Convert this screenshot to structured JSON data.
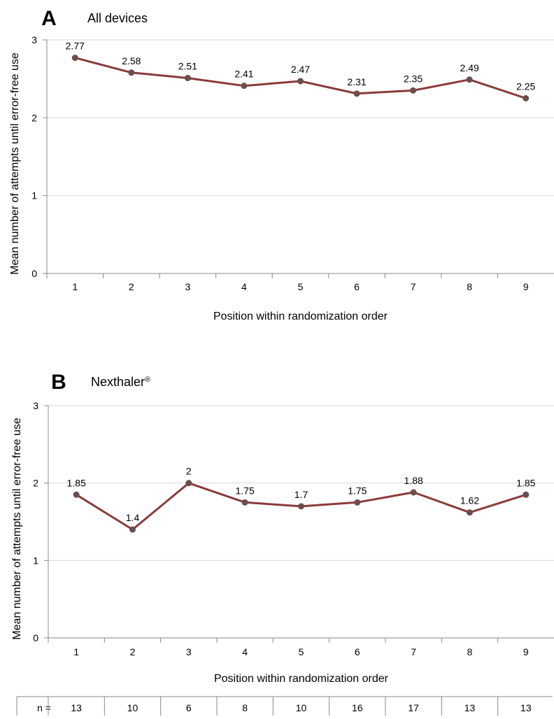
{
  "chart_data": [
    {
      "type": "line",
      "panel_letter": "A",
      "title": "All devices",
      "title_superscript": "",
      "xlabel": "Position within randomization order",
      "ylabel": "Mean number of attempts until error-free use",
      "categories": [
        "1",
        "2",
        "3",
        "4",
        "5",
        "6",
        "7",
        "8",
        "9"
      ],
      "values": [
        2.77,
        2.58,
        2.51,
        2.41,
        2.47,
        2.31,
        2.35,
        2.49,
        2.25
      ],
      "data_labels": [
        "2.77",
        "2.58",
        "2.51",
        "2.41",
        "2.47",
        "2.31",
        "2.35",
        "2.49",
        "2.25"
      ],
      "ylim": [
        0,
        3
      ],
      "yticks": [
        "0",
        "1",
        "2",
        "3"
      ],
      "grid": true,
      "line_color": "#8b3a3a",
      "marker_color": "#6b4e4e"
    },
    {
      "type": "line",
      "panel_letter": "B",
      "title": "Nexthaler",
      "title_superscript": "®",
      "xlabel": "Position within randomization order",
      "ylabel": "Mean number of attempts until error-free use",
      "categories": [
        "1",
        "2",
        "3",
        "4",
        "5",
        "6",
        "7",
        "8",
        "9"
      ],
      "values": [
        1.85,
        1.4,
        2,
        1.75,
        1.7,
        1.75,
        1.88,
        1.62,
        1.85
      ],
      "data_labels": [
        "1.85",
        "1.4",
        "2",
        "1.75",
        "1.7",
        "1.75",
        "1.88",
        "1.62",
        "1.85"
      ],
      "ylim": [
        0,
        3
      ],
      "yticks": [
        "0",
        "1",
        "2",
        "3"
      ],
      "grid": true,
      "line_color": "#8b3a3a",
      "marker_color": "#6b4e4e"
    }
  ],
  "n_row": {
    "label": "n =",
    "values": [
      "13",
      "10",
      "6",
      "8",
      "10",
      "16",
      "17",
      "13",
      "13"
    ]
  }
}
